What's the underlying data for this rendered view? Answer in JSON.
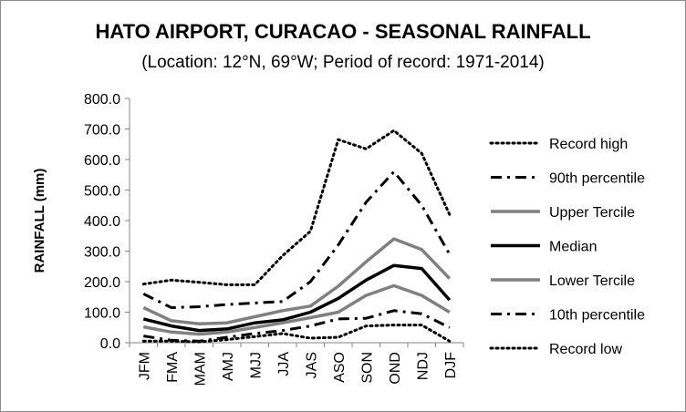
{
  "chart_data": {
    "type": "line",
    "title": "HATO AIRPORT, CURACAO - SEASONAL RAINFALL",
    "subtitle": "(Location: 12°N, 69°W; Period of record: 1971-2014)",
    "ylabel": "RAINFALL (mm)",
    "xlabel": "",
    "ylim": [
      0,
      800
    ],
    "yticks": [
      "0.0",
      "100.0",
      "200.0",
      "300.0",
      "400.0",
      "500.0",
      "600.0",
      "700.0",
      "800.0"
    ],
    "categories": [
      "JFM",
      "FMA",
      "MAM",
      "AMJ",
      "MJJ",
      "JJA",
      "JAS",
      "ASO",
      "SON",
      "OND",
      "NDJ",
      "DJF"
    ],
    "grid": false,
    "legend_position": "right",
    "series": [
      {
        "name": "Record high",
        "style": "dotted",
        "color": "#000000",
        "values": [
          192,
          205,
          198,
          190,
          190,
          285,
          365,
          665,
          635,
          695,
          620,
          420
        ]
      },
      {
        "name": "90th percentile",
        "style": "dashdot",
        "color": "#000000",
        "values": [
          160,
          115,
          118,
          125,
          130,
          135,
          200,
          320,
          460,
          560,
          450,
          290
        ]
      },
      {
        "name": "Upper Tercile",
        "style": "solid",
        "color": "#808080",
        "values": [
          115,
          72,
          62,
          65,
          85,
          105,
          120,
          185,
          265,
          340,
          305,
          210
        ]
      },
      {
        "name": "Median",
        "style": "solid-thick",
        "color": "#000000",
        "values": [
          78,
          55,
          40,
          45,
          65,
          75,
          100,
          145,
          205,
          253,
          243,
          140
        ]
      },
      {
        "name": "Lower Tercile",
        "style": "solid",
        "color": "#808080",
        "values": [
          52,
          35,
          28,
          35,
          50,
          65,
          82,
          100,
          155,
          187,
          155,
          100
        ]
      },
      {
        "name": "10th percentile",
        "style": "dashdot",
        "color": "#000000",
        "values": [
          22,
          8,
          5,
          18,
          30,
          40,
          55,
          78,
          80,
          105,
          95,
          50
        ]
      },
      {
        "name": "Record low",
        "style": "dotted",
        "color": "#000000",
        "values": [
          5,
          5,
          3,
          10,
          20,
          30,
          15,
          18,
          55,
          58,
          58,
          5
        ]
      }
    ]
  }
}
